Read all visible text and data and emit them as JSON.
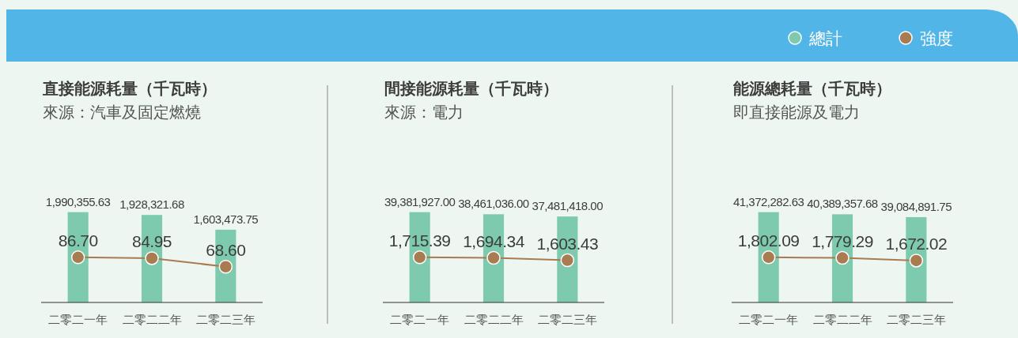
{
  "chart_data": [
    {
      "type": "bar",
      "title": "直接能源耗量（千瓦時）",
      "subtitle": "來源：汽車及固定燃燒",
      "categories": [
        "二零二一年",
        "二零二二年",
        "二零二三年"
      ],
      "tick_labels": "x",
      "marker": "circle",
      "series": [
        {
          "color": "#7ecaae",
          "values": [
            1990355.63,
            1928321.68,
            1603473.75
          ],
          "value_labels": [
            "1,990,355.63",
            "1,928,321.68",
            "1,603,473.75"
          ]
        },
        {
          "type": "line",
          "axis": "y2",
          "color": "#a97b50",
          "values": [
            86.7,
            84.95,
            68.6
          ],
          "value_labels": [
            "86.70",
            "84.95",
            "68.60"
          ]
        }
      ]
    },
    {
      "type": "bar",
      "title": "間接能源耗量（千瓦時）",
      "subtitle": "來源：電力",
      "categories": [
        "二零二一年",
        "二零二二年",
        "二零二三年"
      ],
      "tick_labels": "x",
      "marker": "circle",
      "series": [
        {
          "color": "#7ecaae",
          "values": [
            39381927.0,
            38461036.0,
            37481418.0
          ],
          "value_labels": [
            "39,381,927.00",
            "38,461,036.00",
            "37,481,418.00"
          ]
        },
        {
          "type": "line",
          "axis": "y2",
          "color": "#a97b50",
          "values": [
            1715.39,
            1694.34,
            1603.43
          ],
          "value_labels": [
            "1,715.39",
            "1,694.34",
            "1,603.43"
          ]
        }
      ]
    },
    {
      "type": "bar",
      "title": "能源總耗量（千瓦時）",
      "subtitle": "即直接能源及電力",
      "categories": [
        "二零二一年",
        "二零二二年",
        "二零二三年"
      ],
      "tick_labels": "x",
      "marker": "circle",
      "legend": "top right",
      "series": [
        {
          "name": "總計",
          "color": "#7ecaae",
          "values": [
            41372282.63,
            40389357.68,
            39084891.75
          ],
          "value_labels": [
            "41,372,282.63",
            "40,389,357.68",
            "39,084,891.75"
          ]
        },
        {
          "name": "強度",
          "type": "line",
          "axis": "y2",
          "color": "#a97b50",
          "values": [
            1802.09,
            1779.29,
            1672.02
          ],
          "value_labels": [
            "1,802.09",
            "1,779.29",
            "1,672.02"
          ]
        }
      ]
    }
  ]
}
